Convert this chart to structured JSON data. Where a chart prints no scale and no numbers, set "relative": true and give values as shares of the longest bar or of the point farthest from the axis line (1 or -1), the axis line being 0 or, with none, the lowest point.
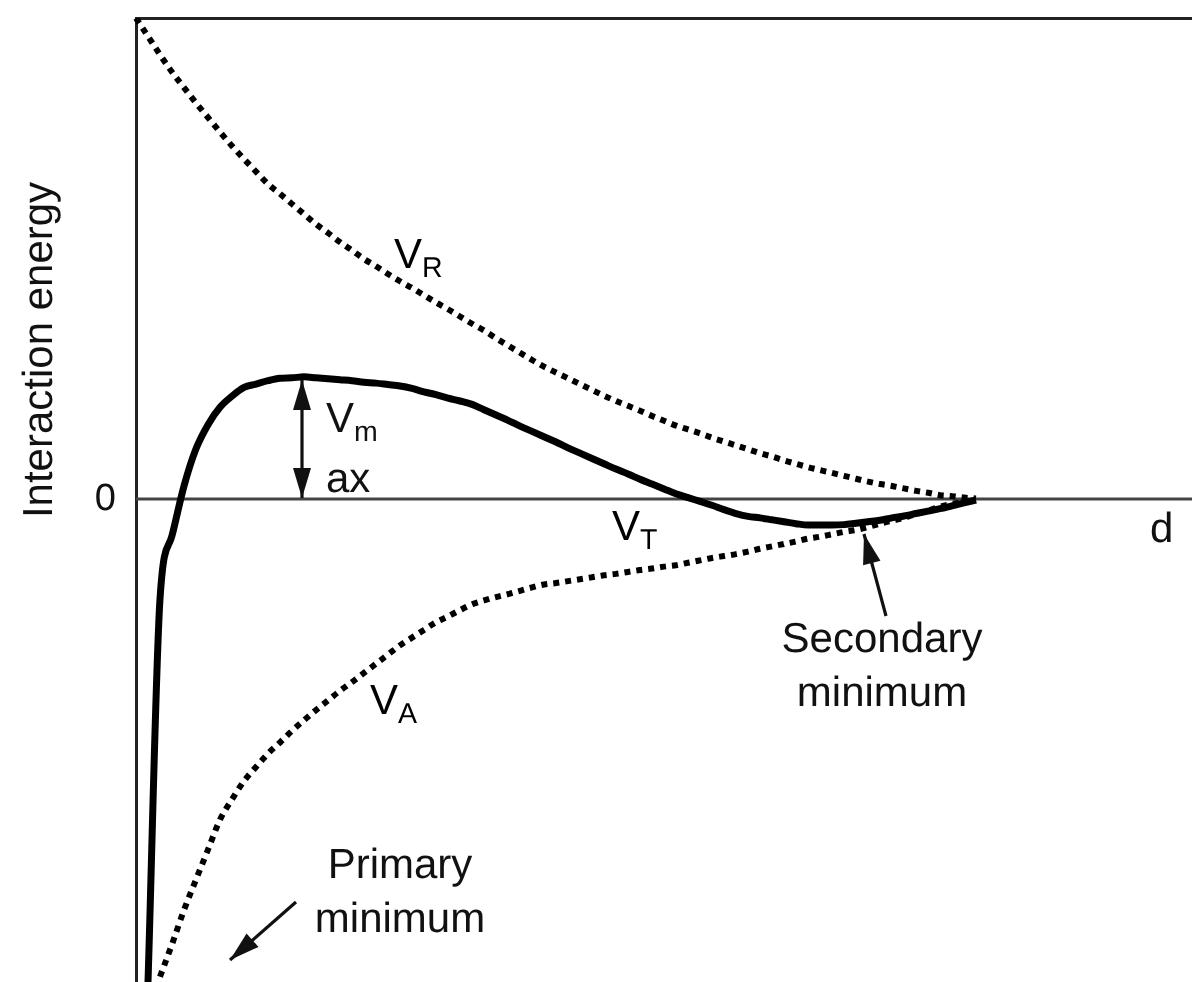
{
  "chart_data": {
    "type": "line",
    "relative": true,
    "ylabel": "Interaction energy",
    "xlabel": "d",
    "marker": "none",
    "categories": [
      null,
      null,
      null,
      null,
      null,
      null,
      null,
      null,
      null,
      null,
      null,
      null,
      null,
      null,
      null,
      null,
      null,
      null,
      null,
      null,
      null,
      null,
      null,
      null,
      null,
      null,
      null,
      null,
      null,
      null,
      null,
      null,
      null,
      null,
      null,
      null,
      null,
      null,
      null,
      null,
      null,
      null,
      null,
      null,
      null,
      null,
      null,
      null,
      null,
      null,
      null,
      null,
      null,
      null,
      null,
      null,
      null,
      null,
      null,
      null,
      null,
      null,
      null,
      null,
      null,
      null,
      null,
      null,
      null,
      null,
      null,
      null,
      null,
      null,
      null,
      null,
      null,
      null,
      null,
      null,
      null,
      null,
      null,
      null,
      null,
      null,
      null,
      null,
      null
    ],
    "series": [
      {
        "name": "V$_{R}$",
        "color": "#000000",
        "line_style": "dotted",
        "values": [
          0.996,
          0.958,
          0.92,
          0.884,
          0.852,
          0.82,
          0.79,
          0.76,
          0.731,
          0.704,
          0.678,
          0.652,
          0.632,
          0.611,
          0.59,
          0.569,
          0.551,
          0.532,
          0.515,
          0.497,
          0.482,
          0.466,
          0.451,
          0.437,
          0.422,
          0.407,
          0.393,
          0.378,
          0.363,
          0.349,
          0.333,
          0.318,
          0.303,
          0.288,
          0.274,
          0.262,
          0.25,
          0.238,
          0.226,
          0.214,
          0.203,
          0.193,
          0.183,
          0.172,
          0.162,
          0.152,
          0.144,
          0.136,
          0.127,
          0.119,
          0.111,
          0.103,
          0.095,
          0.088,
          0.08,
          0.073,
          0.066,
          0.06,
          0.054,
          0.048,
          0.042,
          0.036,
          0.031,
          0.027,
          0.022,
          0.017,
          0.013,
          0.008,
          0.006,
          0.003,
          0.001,
          null,
          null,
          null,
          null,
          null,
          null,
          null,
          null,
          null,
          null,
          null,
          null,
          null,
          null,
          null,
          null,
          null,
          null
        ]
      },
      {
        "name": "V$_{A}$",
        "color": "#000000",
        "line_style": "dotted",
        "values": [
          null,
          null,
          -0.989,
          -0.922,
          -0.851,
          -0.788,
          -0.726,
          -0.664,
          -0.622,
          -0.584,
          -0.555,
          -0.527,
          -0.504,
          -0.48,
          -0.458,
          -0.437,
          -0.417,
          -0.397,
          -0.379,
          -0.36,
          -0.341,
          -0.322,
          -0.303,
          -0.287,
          -0.271,
          -0.255,
          -0.243,
          -0.23,
          -0.218,
          -0.21,
          -0.203,
          -0.197,
          -0.19,
          -0.183,
          -0.177,
          -0.174,
          -0.17,
          -0.166,
          -0.162,
          -0.158,
          -0.155,
          -0.151,
          -0.147,
          -0.144,
          -0.14,
          -0.137,
          -0.132,
          -0.127,
          -0.122,
          -0.118,
          -0.114,
          -0.109,
          -0.103,
          -0.098,
          -0.093,
          -0.088,
          -0.082,
          -0.078,
          -0.073,
          -0.068,
          -0.064,
          -0.058,
          -0.051,
          -0.045,
          -0.039,
          -0.031,
          -0.024,
          -0.016,
          -0.01,
          -0.006,
          -0.002,
          null,
          null,
          null,
          null,
          null,
          null,
          null,
          null,
          null,
          null,
          null,
          null,
          null,
          null,
          null,
          null,
          null,
          null
        ]
      },
      {
        "name": "V$_{T}$",
        "color": "#000000",
        "line_style": "solid",
        "values": [
          null,
          -1.0,
          -0.207,
          -0.076,
          0.027,
          0.104,
          0.154,
          0.19,
          0.213,
          0.231,
          0.238,
          0.245,
          0.25,
          0.251,
          0.253,
          0.251,
          0.249,
          0.247,
          0.245,
          0.242,
          0.24,
          0.237,
          0.234,
          0.229,
          0.222,
          0.216,
          0.209,
          0.203,
          0.196,
          0.185,
          0.174,
          0.163,
          0.151,
          0.14,
          0.129,
          0.118,
          0.106,
          0.095,
          0.084,
          0.073,
          0.062,
          0.052,
          0.041,
          0.031,
          0.021,
          0.011,
          0.003,
          -0.005,
          -0.013,
          -0.022,
          -0.03,
          -0.036,
          -0.039,
          -0.043,
          -0.047,
          -0.051,
          -0.054,
          -0.054,
          -0.054,
          -0.053,
          -0.05,
          -0.047,
          -0.044,
          -0.039,
          -0.035,
          -0.03,
          -0.025,
          -0.02,
          -0.014,
          -0.008,
          -0.002,
          null,
          null,
          null,
          null,
          null,
          null,
          null,
          null,
          null,
          null,
          null,
          null,
          null,
          null,
          null,
          null,
          null,
          null
        ]
      }
    ],
    "ref_lines": [
      {
        "axis": "y",
        "value": 0,
        "label": "0",
        "color": "#444444"
      }
    ],
    "annotations": [
      "V$_{m}$\nax",
      "Secondary minimum",
      "Primary minimum"
    ]
  }
}
